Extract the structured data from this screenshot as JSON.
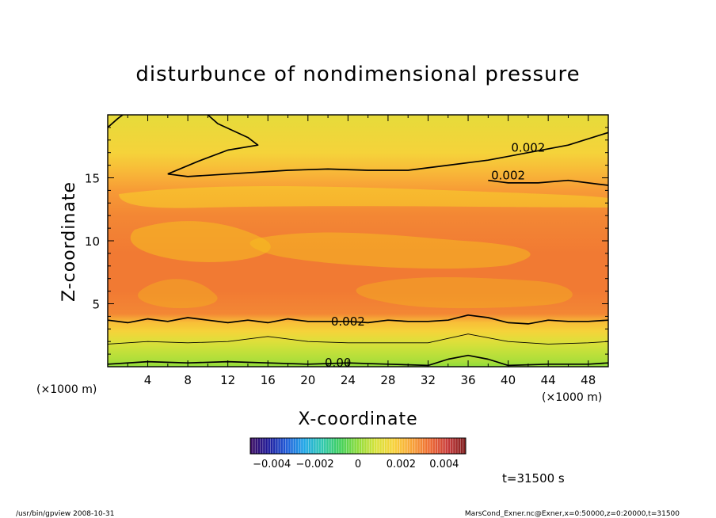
{
  "chart_data": {
    "type": "heatmap",
    "title": "disturbunce of nondimensional pressure",
    "xlabel": "X-coordinate",
    "ylabel": "Z-coordinate",
    "x_unit": "(×1000 m)",
    "y_unit": "(×1000 m)",
    "xlim": [
      0,
      50
    ],
    "ylim": [
      0,
      20
    ],
    "x_ticks": [
      4,
      8,
      12,
      16,
      20,
      24,
      28,
      32,
      36,
      40,
      44,
      48
    ],
    "y_ticks": [
      5,
      10,
      15
    ],
    "grid": false,
    "colorbar": {
      "range": [
        -0.005,
        0.005
      ],
      "tick_values": [
        -0.004,
        -0.002,
        0,
        0.002,
        0.004
      ],
      "tick_labels": [
        "−0.004",
        "−0.002",
        "0",
        "0.002",
        "0.004"
      ],
      "colors": [
        "#3a0a5e",
        "#1f1a9a",
        "#1f5ad8",
        "#20a7e8",
        "#30c8b0",
        "#3fd05a",
        "#8edc3a",
        "#d8e23a",
        "#f8d23a",
        "#f8a236",
        "#ee6a32",
        "#c83a3a",
        "#7a1a1a"
      ]
    },
    "z_profile": [
      {
        "z": 0.0,
        "value": 0.0
      },
      {
        "z": 0.4,
        "value": 0.0003
      },
      {
        "z": 1.2,
        "value": 0.0006
      },
      {
        "z": 2.0,
        "value": 0.001
      },
      {
        "z": 2.8,
        "value": 0.0016
      },
      {
        "z": 3.5,
        "value": 0.002
      },
      {
        "z": 4.2,
        "value": 0.0029
      },
      {
        "z": 6.0,
        "value": 0.0031
      },
      {
        "z": 9.0,
        "value": 0.0031
      },
      {
        "z": 12.0,
        "value": 0.0029
      },
      {
        "z": 14.0,
        "value": 0.0026
      },
      {
        "z": 15.5,
        "value": 0.0021
      },
      {
        "z": 17.0,
        "value": 0.0016
      },
      {
        "z": 20.0,
        "value": 0.0012
      }
    ],
    "contours": [
      {
        "level": "0.002",
        "label": "0.002",
        "label_at": [
          24,
          3.6
        ],
        "points": [
          [
            0,
            3.7
          ],
          [
            2,
            3.5
          ],
          [
            4,
            3.8
          ],
          [
            6,
            3.6
          ],
          [
            8,
            3.9
          ],
          [
            10,
            3.7
          ],
          [
            12,
            3.5
          ],
          [
            14,
            3.7
          ],
          [
            16,
            3.5
          ],
          [
            18,
            3.8
          ],
          [
            20,
            3.6
          ],
          [
            22,
            3.6
          ],
          [
            24,
            3.6
          ],
          [
            26,
            3.5
          ],
          [
            28,
            3.7
          ],
          [
            30,
            3.6
          ],
          [
            32,
            3.6
          ],
          [
            34,
            3.7
          ],
          [
            36,
            4.1
          ],
          [
            38,
            3.9
          ],
          [
            40,
            3.5
          ],
          [
            42,
            3.4
          ],
          [
            44,
            3.7
          ],
          [
            46,
            3.6
          ],
          [
            48,
            3.6
          ],
          [
            50,
            3.7
          ]
        ]
      },
      {
        "level": "0.001",
        "label": "",
        "label_at": null,
        "points": [
          [
            0,
            1.8
          ],
          [
            4,
            2.0
          ],
          [
            8,
            1.9
          ],
          [
            12,
            2.0
          ],
          [
            16,
            2.4
          ],
          [
            20,
            2.0
          ],
          [
            24,
            1.9
          ],
          [
            28,
            1.9
          ],
          [
            32,
            1.9
          ],
          [
            36,
            2.6
          ],
          [
            40,
            2.0
          ],
          [
            44,
            1.8
          ],
          [
            48,
            1.9
          ],
          [
            50,
            2.0
          ]
        ]
      },
      {
        "level": "0.00",
        "label": "0.00",
        "label_at": [
          23,
          0.3
        ],
        "points": [
          [
            0,
            0.2
          ],
          [
            4,
            0.4
          ],
          [
            8,
            0.3
          ],
          [
            12,
            0.4
          ],
          [
            16,
            0.3
          ],
          [
            20,
            0.2
          ],
          [
            24,
            0.3
          ],
          [
            28,
            0.2
          ],
          [
            32,
            0.1
          ],
          [
            34,
            0.6
          ],
          [
            36,
            0.9
          ],
          [
            38,
            0.6
          ],
          [
            40,
            0.1
          ],
          [
            44,
            0.2
          ],
          [
            48,
            0.2
          ],
          [
            50,
            0.3
          ]
        ]
      },
      {
        "level": "0.002",
        "label": "0.002",
        "label_at": [
          42,
          17.4
        ],
        "points": [
          [
            6,
            15.3
          ],
          [
            8,
            15.1
          ],
          [
            10,
            15.2
          ],
          [
            14,
            15.4
          ],
          [
            18,
            15.6
          ],
          [
            22,
            15.7
          ],
          [
            26,
            15.6
          ],
          [
            30,
            15.6
          ],
          [
            34,
            16.0
          ],
          [
            38,
            16.4
          ],
          [
            42,
            17.0
          ],
          [
            46,
            17.6
          ],
          [
            50,
            18.6
          ]
        ]
      },
      {
        "level": "0.002",
        "label": "0.002",
        "label_at": [
          40,
          15.2
        ],
        "points": [
          [
            38,
            14.8
          ],
          [
            40,
            14.6
          ],
          [
            43,
            14.6
          ],
          [
            46,
            14.8
          ],
          [
            49,
            14.5
          ],
          [
            50,
            14.4
          ]
        ]
      },
      {
        "level": "0.0015",
        "label": "",
        "label_at": null,
        "points": [
          [
            6,
            15.3
          ],
          [
            9,
            16.3
          ],
          [
            12,
            17.2
          ],
          [
            15,
            17.6
          ],
          [
            14,
            18.2
          ],
          [
            11,
            19.3
          ],
          [
            10,
            20.0
          ]
        ]
      },
      {
        "level": "0.0015",
        "label": "",
        "label_at": null,
        "points": [
          [
            0,
            19.0
          ],
          [
            1,
            19.7
          ],
          [
            1.5,
            20.0
          ]
        ]
      }
    ],
    "annotations": [
      "t=31500 s"
    ]
  },
  "footer": {
    "left": "/usr/bin/gpview   2008-10-31",
    "right": "MarsCond_Exner.nc@Exner,x=0:50000,z=0:20000,t=31500"
  }
}
